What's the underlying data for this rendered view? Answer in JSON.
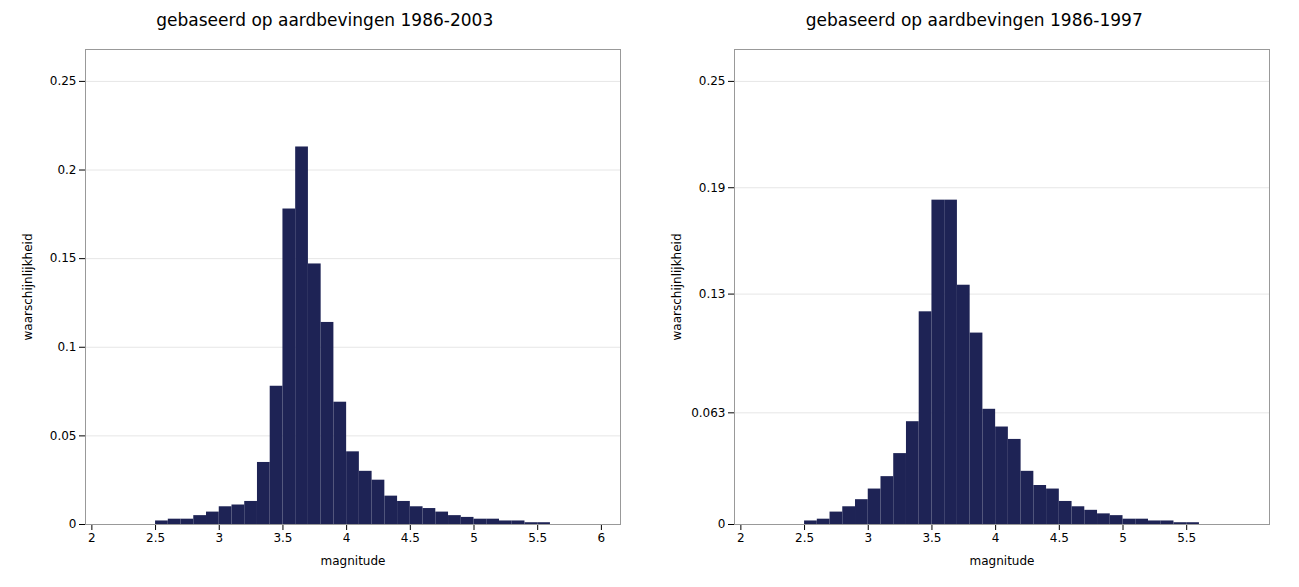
{
  "chart_data": [
    {
      "type": "bar",
      "title": "gebaseerd op aardbevingen 1986-2003",
      "xlabel": "magnitude",
      "ylabel": "waarschijnlijkheid",
      "color": "#1e2355",
      "x": [
        2.55,
        2.65,
        2.75,
        2.85,
        2.95,
        3.05,
        3.15,
        3.25,
        3.35,
        3.45,
        3.55,
        3.65,
        3.75,
        3.85,
        3.95,
        4.05,
        4.15,
        4.25,
        4.35,
        4.45,
        4.55,
        4.65,
        4.75,
        4.85,
        4.95,
        5.05,
        5.15,
        5.25,
        5.35,
        5.45,
        5.55
      ],
      "values": [
        0.002,
        0.003,
        0.003,
        0.005,
        0.007,
        0.01,
        0.011,
        0.013,
        0.035,
        0.078,
        0.178,
        0.213,
        0.147,
        0.114,
        0.069,
        0.041,
        0.03,
        0.025,
        0.016,
        0.013,
        0.01,
        0.009,
        0.007,
        0.005,
        0.004,
        0.003,
        0.003,
        0.002,
        0.002,
        0.001,
        0.001
      ],
      "xlim": [
        1.95,
        6.15
      ],
      "xticks": [
        2,
        2.5,
        3,
        3.5,
        4,
        4.5,
        5,
        5.5,
        6
      ],
      "ylim": [
        0,
        0.268
      ],
      "yticks": [
        0,
        0.05,
        0.1,
        0.15,
        0.2,
        0.25
      ],
      "grid": true
    },
    {
      "type": "bar",
      "title": "gebaseerd op aardbevingen 1986-1997",
      "xlabel": "magnitude",
      "ylabel": "waarschijnlijkheid",
      "color": "#1e2355",
      "x": [
        2.55,
        2.65,
        2.75,
        2.85,
        2.95,
        3.05,
        3.15,
        3.25,
        3.35,
        3.45,
        3.55,
        3.65,
        3.75,
        3.85,
        3.95,
        4.05,
        4.15,
        4.25,
        4.35,
        4.45,
        4.55,
        4.65,
        4.75,
        4.85,
        4.95,
        5.05,
        5.15,
        5.25,
        5.35,
        5.45,
        5.55
      ],
      "values": [
        0.002,
        0.003,
        0.007,
        0.01,
        0.014,
        0.02,
        0.027,
        0.04,
        0.058,
        0.12,
        0.183,
        0.183,
        0.135,
        0.108,
        0.065,
        0.055,
        0.048,
        0.03,
        0.022,
        0.02,
        0.013,
        0.01,
        0.008,
        0.006,
        0.005,
        0.003,
        0.003,
        0.002,
        0.002,
        0.001,
        0.001
      ],
      "xlim": [
        1.95,
        6.15
      ],
      "xticks": [
        2,
        2.5,
        3,
        3.5,
        4,
        4.5,
        5,
        5.5
      ],
      "ylim": [
        0,
        0.268
      ],
      "yticks": [
        0,
        0.063,
        0.13,
        0.19,
        0.25
      ],
      "grid": true
    }
  ]
}
